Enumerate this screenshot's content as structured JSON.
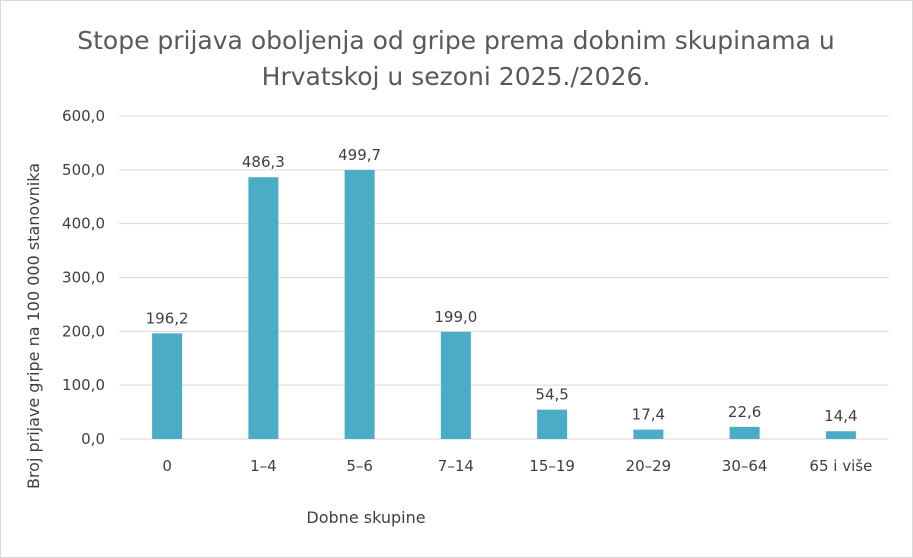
{
  "chart_data": {
    "type": "bar",
    "title": "Stope prijava oboljenja od gripe prema dobnim skupinama u Hrvatskoj u sezoni 2025./2026.",
    "title_lines": [
      "Stope prijava oboljenja od gripe prema dobnim skupinama u",
      "Hrvatskoj u sezoni 2025./2026."
    ],
    "xlabel": "Dobne skupine",
    "ylabel": "Broj prijave gripe na 100 000 stanovnika",
    "categories": [
      "0",
      "1–4",
      "5–6",
      "7–14",
      "15–19",
      "20–29",
      "30–64",
      "65 i više"
    ],
    "values": [
      196.2,
      486.3,
      499.7,
      199.0,
      54.5,
      17.4,
      22.6,
      14.4
    ],
    "value_labels": [
      "196,2",
      "486,3",
      "499,7",
      "199,0",
      "54,5",
      "17,4",
      "22,6",
      "14,4"
    ],
    "ylim": [
      0,
      600
    ],
    "yticks": [
      0,
      100,
      200,
      300,
      400,
      500,
      600
    ],
    "ytick_labels": [
      "0,0",
      "100,0",
      "200,0",
      "300,0",
      "400,0",
      "500,0",
      "600,0"
    ],
    "grid": true,
    "legend": "none",
    "bar_color": "#4bacc6",
    "gridline_color": "#d9d9d9"
  }
}
